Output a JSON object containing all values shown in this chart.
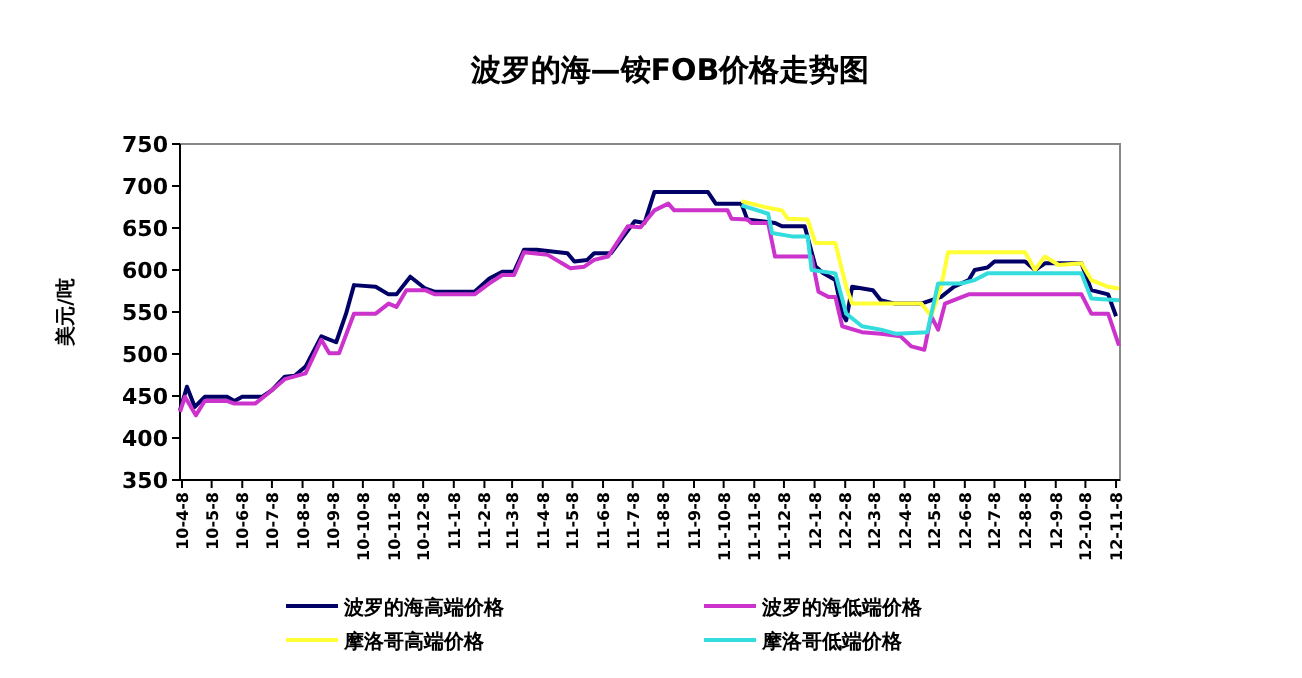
{
  "chart_data": {
    "type": "line",
    "title": "波罗的海—铵FOB价格走势图",
    "ylabel": "美元/吨",
    "legend": "bottom",
    "grid": false,
    "marker": "none",
    "line_style": "solid",
    "ylim": [
      350,
      750
    ],
    "yticks": [
      350,
      400,
      450,
      500,
      550,
      600,
      650,
      700,
      750
    ],
    "xlim": [
      "2010-04-06",
      "2012-11-12"
    ],
    "xticks": [
      {
        "value": "2010-04-08",
        "label": "10-4-8"
      },
      {
        "value": "2010-05-08",
        "label": "10-5-8"
      },
      {
        "value": "2010-06-08",
        "label": "10-6-8"
      },
      {
        "value": "2010-07-08",
        "label": "10-7-8"
      },
      {
        "value": "2010-08-08",
        "label": "10-8-8"
      },
      {
        "value": "2010-09-08",
        "label": "10-9-8"
      },
      {
        "value": "2010-10-08",
        "label": "10-10-8"
      },
      {
        "value": "2010-11-08",
        "label": "10-11-8"
      },
      {
        "value": "2010-12-08",
        "label": "10-12-8"
      },
      {
        "value": "2011-01-08",
        "label": "11-1-8"
      },
      {
        "value": "2011-02-08",
        "label": "11-2-8"
      },
      {
        "value": "2011-03-08",
        "label": "11-3-8"
      },
      {
        "value": "2011-04-08",
        "label": "11-4-8"
      },
      {
        "value": "2011-05-08",
        "label": "11-5-8"
      },
      {
        "value": "2011-06-08",
        "label": "11-6-8"
      },
      {
        "value": "2011-07-08",
        "label": "11-7-8"
      },
      {
        "value": "2011-08-08",
        "label": "11-8-8"
      },
      {
        "value": "2011-09-08",
        "label": "11-9-8"
      },
      {
        "value": "2011-10-08",
        "label": "11-10-8"
      },
      {
        "value": "2011-11-08",
        "label": "11-11-8"
      },
      {
        "value": "2011-12-08",
        "label": "11-12-8"
      },
      {
        "value": "2012-01-08",
        "label": "12-1-8"
      },
      {
        "value": "2012-02-08",
        "label": "12-2-8"
      },
      {
        "value": "2012-03-08",
        "label": "12-3-8"
      },
      {
        "value": "2012-04-08",
        "label": "12-4-8"
      },
      {
        "value": "2012-05-08",
        "label": "12-5-8"
      },
      {
        "value": "2012-06-08",
        "label": "12-6-8"
      },
      {
        "value": "2012-07-08",
        "label": "12-7-8"
      },
      {
        "value": "2012-08-08",
        "label": "12-8-8"
      },
      {
        "value": "2012-09-08",
        "label": "12-9-8"
      },
      {
        "value": "2012-10-08",
        "label": "12-10-8"
      },
      {
        "value": "2012-11-08",
        "label": "12-11-8"
      }
    ],
    "series": [
      {
        "name": "波罗的海高端价格",
        "color": "#000066",
        "x": [
          "2010-04-06",
          "2010-04-13",
          "2010-04-21",
          "2010-05-01",
          "2010-05-24",
          "2010-05-31",
          "2010-06-08",
          "2010-06-28",
          "2010-07-08",
          "2010-07-21",
          "2010-07-31",
          "2010-08-11",
          "2010-08-27",
          "2010-09-11",
          "2010-09-21",
          "2010-09-29",
          "2010-10-21",
          "2010-11-03",
          "2010-11-11",
          "2010-11-25",
          "2010-12-10",
          "2010-12-20",
          "2011-01-29",
          "2011-02-13",
          "2011-02-26",
          "2011-03-10",
          "2011-03-20",
          "2011-04-02",
          "2011-05-03",
          "2011-05-10",
          "2011-05-23",
          "2011-05-30",
          "2011-06-16",
          "2011-06-26",
          "2011-07-10",
          "2011-07-20",
          "2011-07-30",
          "2011-09-22",
          "2011-09-30",
          "2011-10-26",
          "2011-11-01",
          "2011-11-29",
          "2011-12-06",
          "2011-12-29",
          "2012-01-09",
          "2012-01-17",
          "2012-01-29",
          "2012-02-05",
          "2012-02-09",
          "2012-02-15",
          "2012-03-07",
          "2012-03-15",
          "2012-03-29",
          "2012-04-25",
          "2012-05-15",
          "2012-05-28",
          "2012-06-12",
          "2012-06-18",
          "2012-07-01",
          "2012-07-08",
          "2012-08-08",
          "2012-08-18",
          "2012-08-28",
          "2012-10-04",
          "2012-10-14",
          "2012-10-31",
          "2012-11-08"
        ],
        "values": [
          433,
          461,
          437,
          449,
          449,
          444,
          449,
          449,
          457,
          473,
          474,
          485,
          521,
          514,
          548,
          582,
          580,
          571,
          571,
          592,
          578,
          574,
          574,
          590,
          598,
          598,
          624,
          624,
          620,
          610,
          612,
          620,
          620,
          636,
          658,
          656,
          693,
          693,
          679,
          679,
          660,
          656,
          652,
          652,
          604,
          596,
          588,
          548,
          540,
          580,
          576,
          564,
          560,
          560,
          568,
          580,
          588,
          600,
          603,
          610,
          610,
          600,
          608,
          608,
          576,
          571,
          545
        ]
      },
      {
        "name": "波罗的海低端价格",
        "color": "#cc33cc",
        "x": [
          "2010-04-06",
          "2010-04-11",
          "2010-04-22",
          "2010-05-01",
          "2010-05-24",
          "2010-05-31",
          "2010-06-21",
          "2010-07-04",
          "2010-07-21",
          "2010-08-11",
          "2010-08-27",
          "2010-09-04",
          "2010-09-14",
          "2010-09-29",
          "2010-10-21",
          "2010-11-03",
          "2010-11-11",
          "2010-11-21",
          "2010-12-10",
          "2010-12-20",
          "2011-01-29",
          "2011-02-13",
          "2011-02-26",
          "2011-03-10",
          "2011-03-20",
          "2011-04-13",
          "2011-05-06",
          "2011-05-20",
          "2011-05-30",
          "2011-06-13",
          "2011-07-03",
          "2011-07-16",
          "2011-07-30",
          "2011-08-13",
          "2011-08-19",
          "2011-10-12",
          "2011-10-16",
          "2011-11-01",
          "2011-11-05",
          "2011-11-22",
          "2011-11-29",
          "2012-01-05",
          "2012-01-12",
          "2012-01-22",
          "2012-01-29",
          "2012-02-05",
          "2012-02-25",
          "2012-03-15",
          "2012-04-04",
          "2012-04-15",
          "2012-04-28",
          "2012-05-05",
          "2012-05-12",
          "2012-05-19",
          "2012-05-28",
          "2012-06-12",
          "2012-10-04",
          "2012-10-14",
          "2012-10-31",
          "2012-11-11"
        ],
        "values": [
          431,
          449,
          427,
          444,
          444,
          441,
          441,
          453,
          470,
          477,
          517,
          501,
          501,
          548,
          548,
          560,
          556,
          576,
          576,
          571,
          571,
          584,
          594,
          594,
          621,
          618,
          602,
          604,
          612,
          616,
          652,
          651,
          671,
          679,
          671,
          671,
          661,
          660,
          656,
          656,
          616,
          616,
          574,
          568,
          568,
          533,
          526,
          524,
          521,
          509,
          505,
          545,
          529,
          560,
          564,
          571,
          571,
          548,
          548,
          510
        ]
      },
      {
        "name": "摩洛哥高端价格",
        "color": "#ffff33",
        "x": [
          "2011-10-26",
          "2011-11-22",
          "2011-12-06",
          "2011-12-12",
          "2012-01-01",
          "2012-01-09",
          "2012-01-29",
          "2012-02-09",
          "2012-02-15",
          "2012-04-25",
          "2012-05-05",
          "2012-05-15",
          "2012-05-22",
          "2012-08-08",
          "2012-08-18",
          "2012-08-28",
          "2012-09-11",
          "2012-10-04",
          "2012-10-14",
          "2012-10-31",
          "2012-11-11"
        ],
        "values": [
          682,
          674,
          671,
          661,
          660,
          632,
          632,
          580,
          560,
          560,
          545,
          580,
          621,
          621,
          600,
          616,
          606,
          608,
          588,
          580,
          578
        ]
      },
      {
        "name": "摩洛哥低端价格",
        "color": "#33dddd",
        "x": [
          "2011-10-26",
          "2011-11-22",
          "2011-11-26",
          "2011-12-16",
          "2012-01-01",
          "2012-01-05",
          "2012-01-29",
          "2012-02-09",
          "2012-02-25",
          "2012-03-15",
          "2012-03-31",
          "2012-05-01",
          "2012-05-12",
          "2012-06-04",
          "2012-06-18",
          "2012-07-01",
          "2012-10-04",
          "2012-10-14",
          "2012-11-11"
        ],
        "values": [
          677,
          667,
          644,
          640,
          640,
          600,
          596,
          548,
          533,
          529,
          524,
          526,
          584,
          584,
          588,
          596,
          596,
          566,
          564
        ]
      }
    ]
  }
}
